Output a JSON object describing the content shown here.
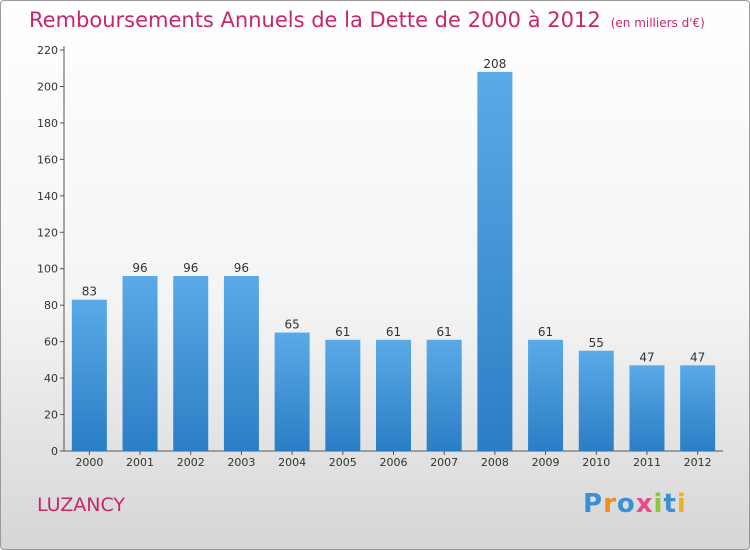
{
  "header": {
    "title": "Remboursements Annuels de la Dette de 2000 à 2012",
    "subtitle": "(en milliers d'€)"
  },
  "place": "LUZANCY",
  "logo": {
    "letters": [
      "P",
      "r",
      "o",
      "x",
      "i",
      "t",
      "i"
    ],
    "colors": [
      "#3a8fd6",
      "#f28c1e",
      "#3a8fd6",
      "#e84a8a",
      "#8cc63f",
      "#3a8fd6",
      "#f2b01e"
    ]
  },
  "chart_data": {
    "type": "bar",
    "title": "Remboursements Annuels de la Dette de 2000 à 2012",
    "categories": [
      "2000",
      "2001",
      "2002",
      "2003",
      "2004",
      "2005",
      "2006",
      "2007",
      "2008",
      "2009",
      "2010",
      "2011",
      "2012"
    ],
    "values": [
      83,
      96,
      96,
      96,
      65,
      61,
      61,
      61,
      208,
      61,
      55,
      47,
      47
    ],
    "ylim": [
      0,
      220
    ],
    "yticks": [
      0,
      20,
      40,
      60,
      80,
      100,
      120,
      140,
      160,
      180,
      200,
      220
    ],
    "grid": false,
    "bar_color_top": "#5aaae8",
    "bar_color_bottom": "#2a7ec4"
  }
}
